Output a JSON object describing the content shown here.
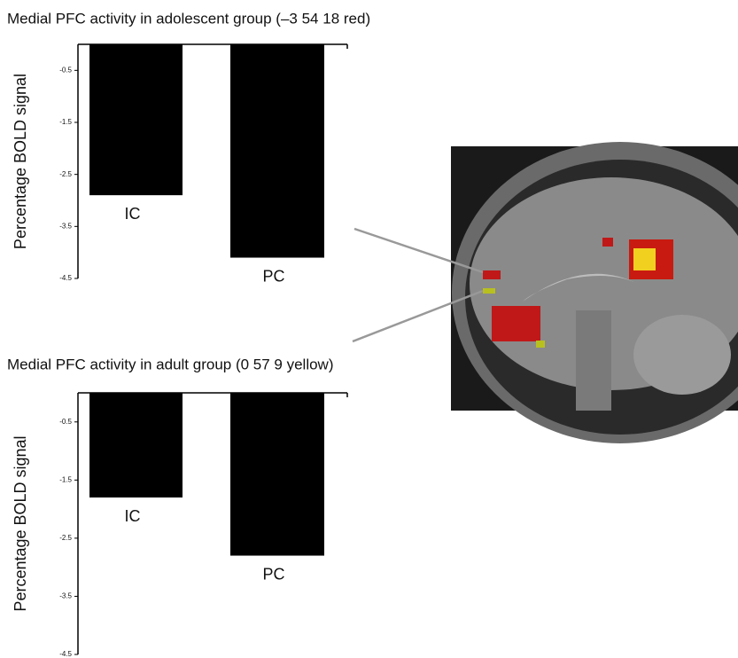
{
  "chart_data": [
    {
      "type": "bar",
      "title": "Medial PFC activity in adolescent group (–3 54 18 red)",
      "y_label": "Percentage BOLD signal",
      "categories": [
        "IC",
        "PC"
      ],
      "values": [
        -2.9,
        -4.1
      ],
      "color": "#000000",
      "ylim": [
        -4.5,
        0
      ],
      "yticks": [
        -0.5,
        -1.5,
        -2.5,
        -3.5,
        -4.5
      ]
    },
    {
      "type": "bar",
      "title": "Medial PFC activity in adult group (0 57 9 yellow)",
      "y_label": "Percentage BOLD signal",
      "categories": [
        "IC",
        "PC"
      ],
      "values": [
        -1.8,
        -2.8
      ],
      "color": "#000000",
      "ylim": [
        -4.5,
        0
      ],
      "yticks": [
        -0.5,
        -1.5,
        -2.5,
        -3.5,
        -4.5
      ]
    }
  ]
}
